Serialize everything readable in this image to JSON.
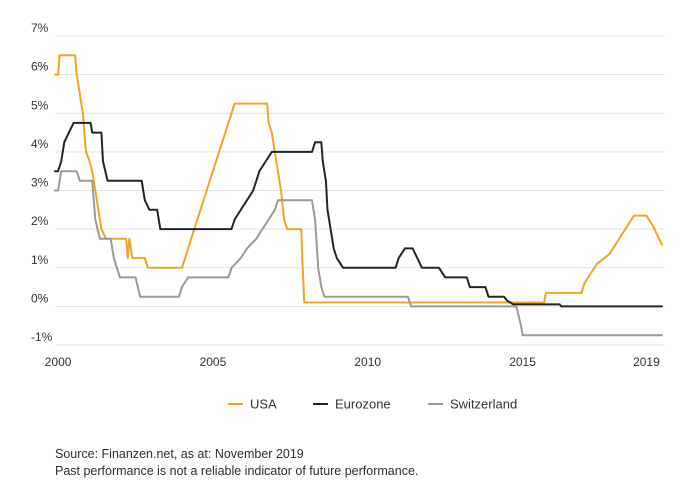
{
  "chart_data": {
    "type": "line",
    "title": "",
    "xlabel": "",
    "ylabel": "",
    "xlim": [
      1999.9,
      2019.6
    ],
    "ylim": [
      -1,
      7
    ],
    "x_ticks": [
      {
        "value": 2000,
        "label": "2000"
      },
      {
        "value": 2005,
        "label": "2005"
      },
      {
        "value": 2010,
        "label": "2010"
      },
      {
        "value": 2015,
        "label": "2015"
      },
      {
        "value": 2019,
        "label": "2019"
      }
    ],
    "y_ticks": [
      {
        "value": 7,
        "label": "7%"
      },
      {
        "value": 6,
        "label": "6%"
      },
      {
        "value": 5,
        "label": "5%"
      },
      {
        "value": 4,
        "label": "4%"
      },
      {
        "value": 3,
        "label": "3%"
      },
      {
        "value": 2,
        "label": "2%"
      },
      {
        "value": 1,
        "label": "1%"
      },
      {
        "value": 0,
        "label": "0%"
      },
      {
        "value": -1,
        "label": "-1%"
      }
    ],
    "grid": {
      "horizontal": true,
      "vertical": false
    },
    "legend_position": "bottom",
    "series": [
      {
        "name": "USA",
        "color": "#f0a526",
        "points": [
          [
            1999.9,
            6.0
          ],
          [
            2000.0,
            6.0
          ],
          [
            2000.05,
            6.5
          ],
          [
            2000.55,
            6.5
          ],
          [
            2000.6,
            6.0
          ],
          [
            2000.7,
            5.5
          ],
          [
            2000.8,
            5.0
          ],
          [
            2000.85,
            4.5
          ],
          [
            2000.9,
            4.0
          ],
          [
            2001.0,
            3.8
          ],
          [
            2001.1,
            3.5
          ],
          [
            2001.2,
            3.0
          ],
          [
            2001.3,
            2.5
          ],
          [
            2001.4,
            2.0
          ],
          [
            2001.55,
            1.75
          ],
          [
            2002.2,
            1.75
          ],
          [
            2002.25,
            1.25
          ],
          [
            2002.3,
            1.75
          ],
          [
            2002.4,
            1.25
          ],
          [
            2002.8,
            1.25
          ],
          [
            2002.9,
            1.0
          ],
          [
            2004.0,
            1.0
          ],
          [
            2004.1,
            1.25
          ],
          [
            2004.2,
            1.5
          ],
          [
            2004.3,
            1.75
          ],
          [
            2004.4,
            2.0
          ],
          [
            2004.5,
            2.25
          ],
          [
            2004.6,
            2.5
          ],
          [
            2004.7,
            2.75
          ],
          [
            2004.8,
            3.0
          ],
          [
            2004.9,
            3.25
          ],
          [
            2005.0,
            3.5
          ],
          [
            2005.1,
            3.75
          ],
          [
            2005.2,
            4.0
          ],
          [
            2005.3,
            4.25
          ],
          [
            2005.4,
            4.5
          ],
          [
            2005.5,
            4.75
          ],
          [
            2005.6,
            5.0
          ],
          [
            2005.7,
            5.25
          ],
          [
            2006.75,
            5.25
          ],
          [
            2006.8,
            4.75
          ],
          [
            2006.9,
            4.5
          ],
          [
            2007.0,
            4.0
          ],
          [
            2007.1,
            3.5
          ],
          [
            2007.2,
            3.0
          ],
          [
            2007.3,
            2.25
          ],
          [
            2007.4,
            2.0
          ],
          [
            2007.85,
            2.0
          ],
          [
            2007.9,
            1.0
          ],
          [
            2007.95,
            0.1
          ],
          [
            2015.7,
            0.1
          ],
          [
            2015.75,
            0.35
          ],
          [
            2016.9,
            0.35
          ],
          [
            2017.0,
            0.6
          ],
          [
            2017.2,
            0.85
          ],
          [
            2017.4,
            1.1
          ],
          [
            2017.8,
            1.35
          ],
          [
            2018.0,
            1.6
          ],
          [
            2018.2,
            1.85
          ],
          [
            2018.4,
            2.1
          ],
          [
            2018.6,
            2.35
          ],
          [
            2019.0,
            2.35
          ],
          [
            2019.2,
            2.1
          ],
          [
            2019.35,
            1.85
          ],
          [
            2019.5,
            1.6
          ]
        ]
      },
      {
        "name": "Eurozone",
        "color": "#1e2630",
        "points": [
          [
            1999.9,
            3.5
          ],
          [
            2000.0,
            3.5
          ],
          [
            2000.1,
            3.75
          ],
          [
            2000.2,
            4.25
          ],
          [
            2000.35,
            4.5
          ],
          [
            2000.5,
            4.75
          ],
          [
            2001.05,
            4.75
          ],
          [
            2001.1,
            4.5
          ],
          [
            2001.4,
            4.5
          ],
          [
            2001.45,
            3.75
          ],
          [
            2001.6,
            3.25
          ],
          [
            2002.7,
            3.25
          ],
          [
            2002.8,
            2.75
          ],
          [
            2002.95,
            2.5
          ],
          [
            2003.2,
            2.5
          ],
          [
            2003.3,
            2.0
          ],
          [
            2005.6,
            2.0
          ],
          [
            2005.7,
            2.25
          ],
          [
            2005.9,
            2.5
          ],
          [
            2006.1,
            2.75
          ],
          [
            2006.3,
            3.0
          ],
          [
            2006.4,
            3.25
          ],
          [
            2006.5,
            3.5
          ],
          [
            2006.7,
            3.75
          ],
          [
            2006.9,
            4.0
          ],
          [
            2008.2,
            4.0
          ],
          [
            2008.3,
            4.25
          ],
          [
            2008.5,
            4.25
          ],
          [
            2008.55,
            3.75
          ],
          [
            2008.65,
            3.25
          ],
          [
            2008.7,
            2.5
          ],
          [
            2008.8,
            2.0
          ],
          [
            2008.9,
            1.5
          ],
          [
            2009.0,
            1.25
          ],
          [
            2009.2,
            1.0
          ],
          [
            2010.9,
            1.0
          ],
          [
            2011.0,
            1.25
          ],
          [
            2011.2,
            1.5
          ],
          [
            2011.45,
            1.5
          ],
          [
            2011.6,
            1.25
          ],
          [
            2011.75,
            1.0
          ],
          [
            2012.3,
            1.0
          ],
          [
            2012.5,
            0.75
          ],
          [
            2013.2,
            0.75
          ],
          [
            2013.3,
            0.5
          ],
          [
            2013.8,
            0.5
          ],
          [
            2013.9,
            0.25
          ],
          [
            2014.4,
            0.25
          ],
          [
            2014.5,
            0.15
          ],
          [
            2014.7,
            0.05
          ],
          [
            2016.2,
            0.05
          ],
          [
            2016.25,
            0.0
          ],
          [
            2019.5,
            0.0
          ]
        ]
      },
      {
        "name": "Switzerland",
        "color": "#9a9a9a",
        "points": [
          [
            1999.9,
            3.0
          ],
          [
            2000.0,
            3.0
          ],
          [
            2000.1,
            3.5
          ],
          [
            2000.6,
            3.5
          ],
          [
            2000.7,
            3.25
          ],
          [
            2001.1,
            3.25
          ],
          [
            2001.2,
            2.25
          ],
          [
            2001.35,
            1.75
          ],
          [
            2001.7,
            1.75
          ],
          [
            2001.8,
            1.25
          ],
          [
            2002.0,
            0.75
          ],
          [
            2002.5,
            0.75
          ],
          [
            2002.65,
            0.25
          ],
          [
            2003.6,
            0.25
          ],
          [
            2003.9,
            0.25
          ],
          [
            2004.0,
            0.5
          ],
          [
            2004.2,
            0.75
          ],
          [
            2005.5,
            0.75
          ],
          [
            2005.6,
            1.0
          ],
          [
            2005.9,
            1.25
          ],
          [
            2006.1,
            1.5
          ],
          [
            2006.4,
            1.75
          ],
          [
            2006.6,
            2.0
          ],
          [
            2006.8,
            2.25
          ],
          [
            2007.0,
            2.5
          ],
          [
            2007.1,
            2.75
          ],
          [
            2008.2,
            2.75
          ],
          [
            2008.3,
            2.25
          ],
          [
            2008.4,
            1.0
          ],
          [
            2008.5,
            0.5
          ],
          [
            2008.6,
            0.25
          ],
          [
            2011.3,
            0.25
          ],
          [
            2011.4,
            0.0
          ],
          [
            2014.8,
            0.0
          ],
          [
            2014.95,
            -0.5
          ],
          [
            2015.0,
            -0.75
          ],
          [
            2019.5,
            -0.75
          ]
        ]
      }
    ]
  },
  "legend": [
    {
      "label": "USA",
      "color": "#f0a526"
    },
    {
      "label": "Eurozone",
      "color": "#1e2630"
    },
    {
      "label": "Switzerland",
      "color": "#9a9a9a"
    }
  ],
  "footer": {
    "source": "Source: Finanzen.net, as at: November 2019",
    "disclaimer": "Past performance is not a reliable indicator of future performance."
  }
}
